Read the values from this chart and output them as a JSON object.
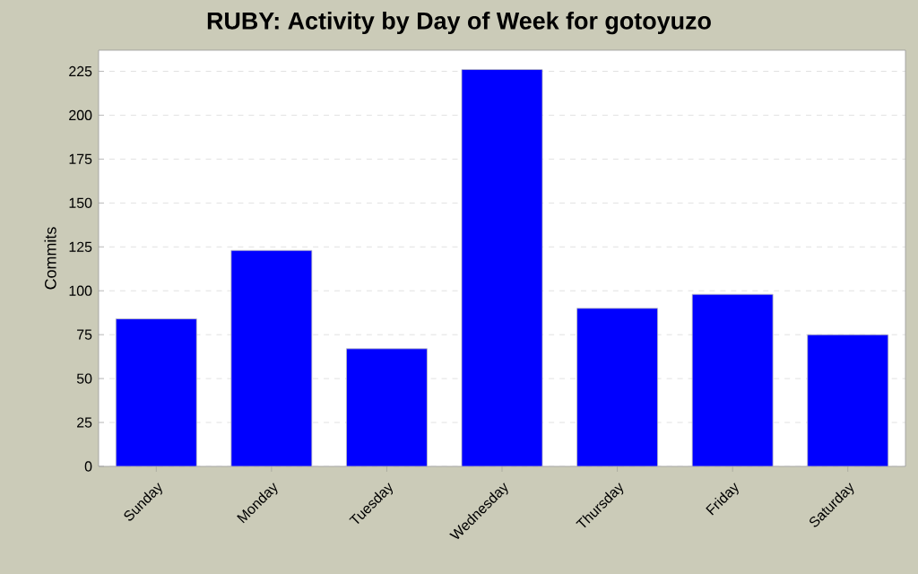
{
  "chart_data": {
    "type": "bar",
    "title": "RUBY: Activity by Day of Week for gotoyuzo",
    "ylabel": "Commits",
    "categories": [
      "Sunday",
      "Monday",
      "Tuesday",
      "Wednesday",
      "Thursday",
      "Friday",
      "Saturday"
    ],
    "values": [
      84,
      123,
      67,
      226,
      90,
      98,
      75
    ],
    "color": "#0000ff",
    "ylim": [
      0,
      237
    ],
    "yticks": [
      0,
      25,
      50,
      75,
      100,
      125,
      150,
      175,
      200,
      225
    ],
    "grid": "y"
  }
}
